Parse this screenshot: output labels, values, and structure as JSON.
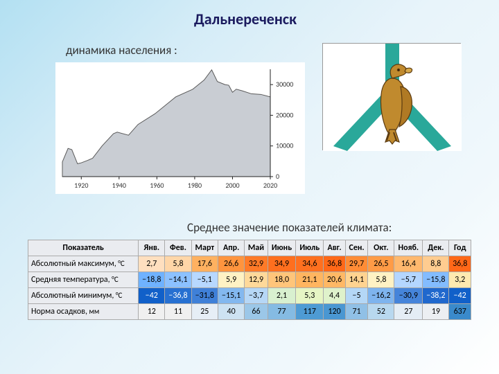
{
  "title": "Дальнереченск",
  "subtitle": "динамика населения :",
  "climate_label": "Среднее значение показателей климата:",
  "population_chart": {
    "type": "area",
    "xlim": [
      1910,
      2020
    ],
    "ylim": [
      0,
      35000
    ],
    "xticks": [
      1920,
      1940,
      1960,
      1980,
      2000,
      2020
    ],
    "yticks": [
      0,
      10000,
      20000,
      30000
    ],
    "background_color": "#ffffff",
    "area_fill": "#c9cdd3",
    "area_stroke": "#5a5a5a",
    "grid_color": "#dddddd",
    "axis_color": "#222222",
    "tick_font_size": 10,
    "tick_color": "#333333",
    "data": [
      [
        1910,
        4800
      ],
      [
        1913,
        9200
      ],
      [
        1915,
        8800
      ],
      [
        1918,
        4200
      ],
      [
        1920,
        4500
      ],
      [
        1923,
        5200
      ],
      [
        1926,
        6000
      ],
      [
        1931,
        10000
      ],
      [
        1937,
        14000
      ],
      [
        1939,
        14500
      ],
      [
        1945,
        13500
      ],
      [
        1950,
        17000
      ],
      [
        1959,
        20500
      ],
      [
        1967,
        24500
      ],
      [
        1970,
        26000
      ],
      [
        1979,
        28500
      ],
      [
        1985,
        31500
      ],
      [
        1989,
        34800
      ],
      [
        1992,
        31000
      ],
      [
        1996,
        30000
      ],
      [
        1998,
        29800
      ],
      [
        2000,
        27500
      ],
      [
        2002,
        28500
      ],
      [
        2005,
        28000
      ],
      [
        2010,
        27000
      ],
      [
        2015,
        26800
      ],
      [
        2020,
        26000
      ]
    ]
  },
  "coat_of_arms": {
    "background": "#ffffff",
    "stripe_color": "#2aa89a",
    "eagle_body": "#c08a2e",
    "eagle_outline": "#5a3a10"
  },
  "climate_table": {
    "columns": [
      "Показатель",
      "Янв.",
      "Фев.",
      "Март",
      "Апр.",
      "Май",
      "Июнь",
      "Июль",
      "Авг.",
      "Сен.",
      "Окт.",
      "Нояб.",
      "Дек.",
      "Год"
    ],
    "rows": [
      {
        "label": "Абсолютный максимум, °C",
        "key": "absmax",
        "values": [
          "2,7",
          "5,8",
          "17,6",
          "26,6",
          "32,9",
          "34,9",
          "34,6",
          "36,8",
          "29,7",
          "26,5",
          "16,4",
          "8,8",
          "36,8"
        ],
        "colors": [
          "#ffdfbf",
          "#ffd6a8",
          "#ffb160",
          "#ff943e",
          "#ff7a28",
          "#ff6f1e",
          "#ff701f",
          "#ff6818",
          "#ff8c36",
          "#ff9b46",
          "#ffb86e",
          "#ffcc90",
          "#ff6818"
        ]
      },
      {
        "label": "Средняя температура, °C",
        "key": "avgtemp",
        "values": [
          "−18,8",
          "−14,1",
          "−5,1",
          "5,9",
          "12,9",
          "18,0",
          "21,1",
          "20,6",
          "14,1",
          "5,8",
          "−5,7",
          "−15,8",
          "3,2"
        ],
        "colors": [
          "#6fb2ff",
          "#8cc1ff",
          "#b7d8ff",
          "#fff2c4",
          "#ffd99a",
          "#ffc57a",
          "#ffb560",
          "#ffb865",
          "#ffd390",
          "#fff2c4",
          "#b4d6ff",
          "#83bcff",
          "#ffeab0"
        ]
      },
      {
        "label": "Абсолютный минимум, °C",
        "key": "absmin",
        "values": [
          "−42",
          "−36,8",
          "−31,8",
          "−15,1",
          "−3,7",
          "2,1",
          "5,3",
          "4,4",
          "−5",
          "−16,2",
          "−30,9",
          "−38,2",
          "−42"
        ],
        "colors": [
          "#1160c9",
          "#2770d1",
          "#3f80d8",
          "#83b8ef",
          "#b6d7f6",
          "#d8f0cf",
          "#e6f5c4",
          "#dff2cb",
          "#b4d7f6",
          "#7eb4ee",
          "#4584da",
          "#2068cd",
          "#1160c9"
        ]
      },
      {
        "label": "Норма осадков, мм",
        "key": "precip",
        "values": [
          "12",
          "11",
          "25",
          "40",
          "66",
          "77",
          "117",
          "120",
          "71",
          "52",
          "27",
          "19",
          "637"
        ],
        "colors": [
          "#f0f0f0",
          "#f0f0f0",
          "#e6eef6",
          "#cde2f2",
          "#9bc7e8",
          "#85bbe3",
          "#4e9bd4",
          "#4a97d2",
          "#90c0e6",
          "#b8d8ef",
          "#e4edf5",
          "#eceff2",
          "#3a8acb"
        ]
      }
    ],
    "header_bg": "#eaecf0",
    "border_color": "#aaaaaa",
    "font_size": 12
  }
}
